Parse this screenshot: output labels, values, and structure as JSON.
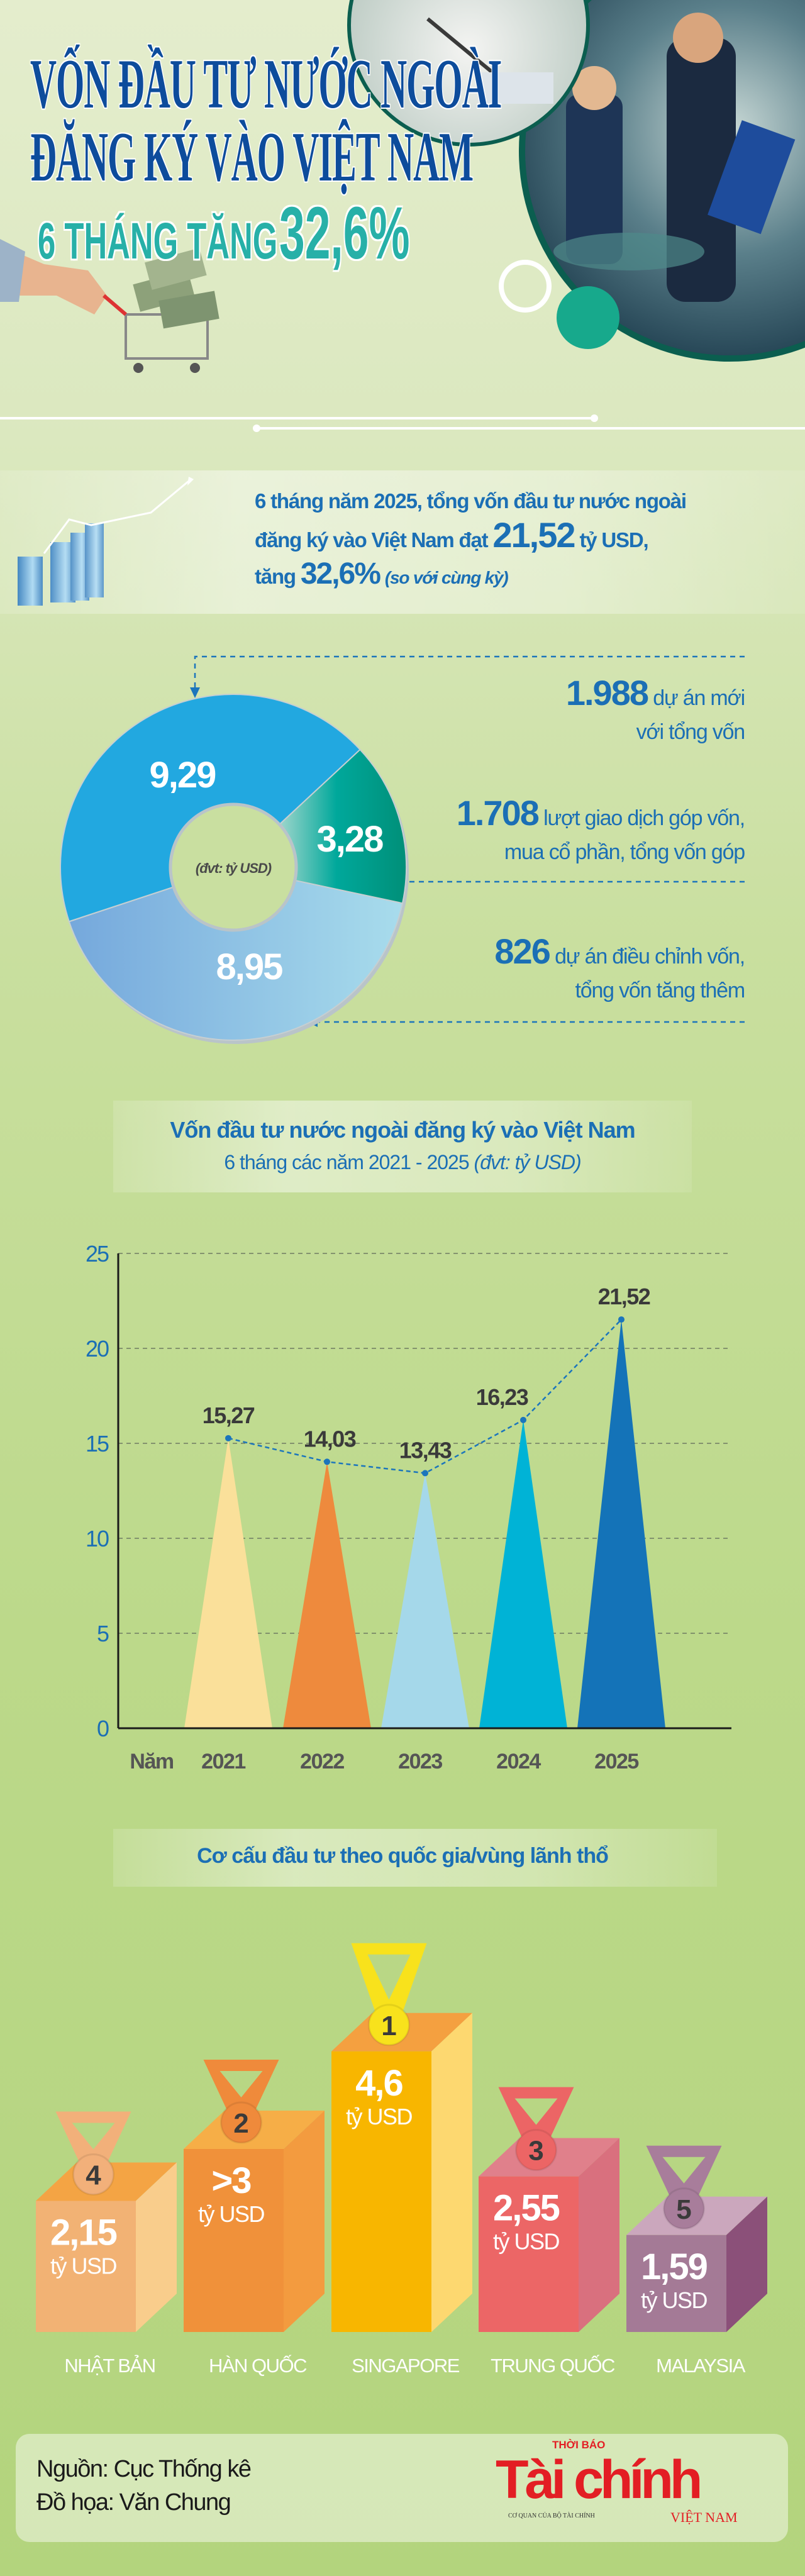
{
  "header": {
    "title_line1": "VỐN ĐẦU TƯ NƯỚC NGOÀI",
    "title_line2": "ĐĂNG KÝ VÀO VIỆT NAM",
    "subtitle_prefix": "6 THÁNG TĂNG",
    "subtitle_value": "32,6%"
  },
  "summary": {
    "line1": "6 tháng năm 2025, tổng vốn đầu tư nước ngoài",
    "line2_prefix": "đăng ký vào Việt Nam đạt",
    "total": "21,52",
    "line2_suffix": "tỷ USD,",
    "line3_prefix": "tăng",
    "growth": "32,6%",
    "line3_note": "(so với cùng kỳ)"
  },
  "facts": [
    {
      "number": "1.988",
      "text1": "dự án mới",
      "text2": "với tổng vốn"
    },
    {
      "number": "1.708",
      "text1": "lượt giao dịch góp vốn,",
      "text2": "mua cổ phần, tổng vốn góp"
    },
    {
      "number": "826",
      "text1": "dự án điều chỉnh vốn,",
      "text2": "tổng vốn tăng thêm"
    }
  ],
  "chart_data": [
    {
      "type": "pie",
      "unit_label": "(đvt: tỷ USD)",
      "categories": [
        "Dự án mới",
        "Góp vốn, mua cổ phần",
        "Điều chỉnh vốn"
      ],
      "values": [
        9.29,
        3.28,
        8.95
      ],
      "labels": [
        "9,29",
        "3,28",
        "8,95"
      ],
      "colors": [
        "#22a8e0",
        "#00a58e",
        "#8cc4e4"
      ]
    },
    {
      "type": "bar",
      "title": "Vốn đầu tư nước ngoài đăng ký vào Việt Nam",
      "subtitle": "6 tháng các năm 2021 - 2025",
      "subtitle_unit": "(đvt: tỷ USD)",
      "xlabel": "Năm",
      "categories": [
        "2021",
        "2022",
        "2023",
        "2024",
        "2025"
      ],
      "values": [
        15.27,
        14.03,
        13.43,
        16.23,
        21.52
      ],
      "labels": [
        "15,27",
        "14,03",
        "13,43",
        "16,23",
        "21,52"
      ],
      "ylim": [
        0,
        25
      ],
      "yticks": [
        "0",
        "5",
        "10",
        "15",
        "20",
        "25"
      ],
      "grid": true,
      "colors": [
        "#fae09a",
        "#ee8a3d",
        "#a5d8ea",
        "#00b3d6",
        "#1473b8"
      ],
      "line_color": "#1b75bc"
    },
    {
      "type": "bar",
      "title": "Cơ cấu đầu tư theo quốc gia/vùng lãnh thổ",
      "unit": "tỷ USD",
      "categories": [
        "NHẬT BẢN",
        "HÀN QUỐC",
        "SINGAPORE",
        "TRUNG QUỐC",
        "MALAYSIA"
      ],
      "values": [
        2.15,
        3,
        4.6,
        2.55,
        1.59
      ],
      "labels": [
        "2,15",
        ">3",
        "4,6",
        "2,55",
        "1,59"
      ],
      "ranks": [
        "4",
        "2",
        "1",
        "3",
        "5"
      ],
      "colors": [
        {
          "front": "#f2b274",
          "side": "#f9cd8c",
          "top": "#f4a444",
          "medal": "#f2b07a"
        },
        {
          "front": "#f0913a",
          "side": "#f39b3f",
          "top": "#f6ae47",
          "medal": "#ef8a3b"
        },
        {
          "front": "#f8b600",
          "side": "#fdd870",
          "top": "#f4a040",
          "medal": "#f8e21c"
        },
        {
          "front": "#ec6666",
          "side": "#d9707e",
          "top": "#e0808b",
          "medal": "#ec6565"
        },
        {
          "front": "#a47a96",
          "side": "#8b5079",
          "top": "#cba7bd",
          "medal": "#a87d9b"
        }
      ]
    }
  ],
  "footer": {
    "source": "Nguồn: Cục Thống kê",
    "graphics": "Đồ họa: Văn Chung",
    "logo_top": "THỜI BÁO",
    "logo_main": "Tài chính",
    "logo_sub": "CƠ QUAN CỦA BỘ TÀI CHÍNH",
    "logo_country": "VIỆT NAM"
  },
  "colors": {
    "primary_blue": "#1b6fb5",
    "title_blue": "#0d4c9c",
    "teal": "#27b0a8",
    "logo_red": "#e31e24"
  }
}
